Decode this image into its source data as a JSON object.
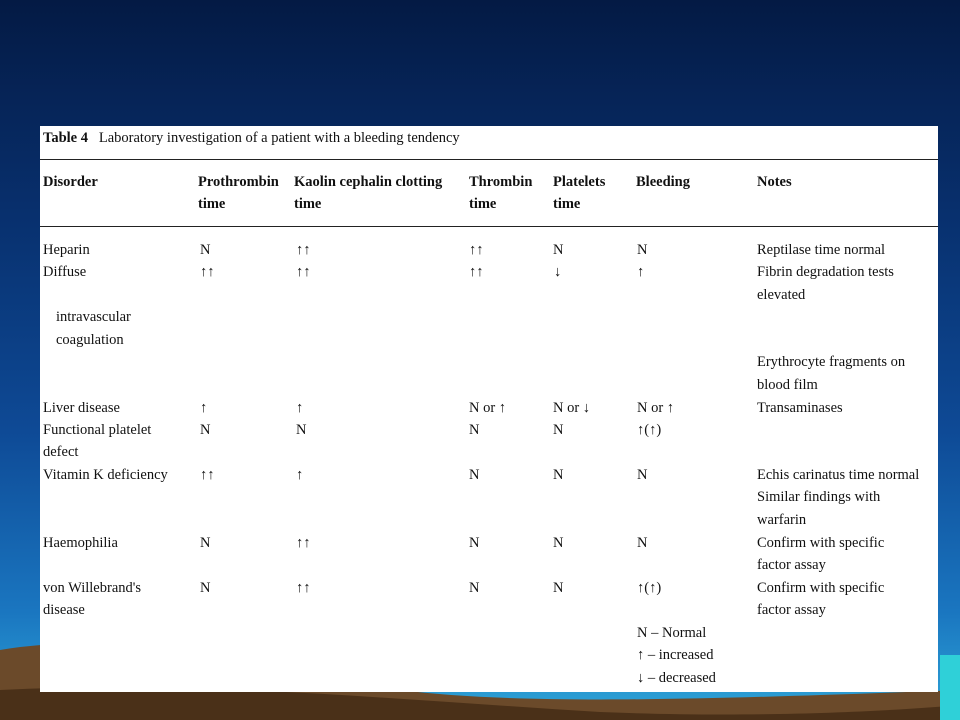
{
  "slide": {
    "colors": {
      "background_top": "#041a44",
      "background_bottom": "#2fa6d8",
      "hills": "#6b4a2a",
      "table_bg": "#ffffff"
    }
  },
  "table": {
    "caption_label": "Table 4",
    "caption_text": "Laboratory investigation of a patient with a bleeding tendency",
    "headers": {
      "disorder": "Disorder",
      "prothrombin": [
        "Prothrombin",
        "time"
      ],
      "kaolin": [
        "Kaolin cephalin clotting",
        "time"
      ],
      "thrombin": [
        "Thrombin",
        "time"
      ],
      "platelets": [
        "Platelets",
        "time"
      ],
      "bleeding": "Bleeding",
      "notes": "Notes"
    },
    "rows": {
      "heparin": {
        "disorder": "Heparin",
        "prothrombin": "N",
        "kaolin": "↑↑",
        "thrombin": "↑↑",
        "platelets": "N",
        "bleeding": "N",
        "notes": [
          "Reptilase time normal"
        ]
      },
      "dic": {
        "disorder": [
          "Diffuse",
          "intravascular",
          "coagulation"
        ],
        "prothrombin": "↑↑",
        "kaolin": "↑↑",
        "thrombin": "↑↑",
        "platelets": "↓",
        "bleeding": "↑",
        "notes": [
          "Fibrin degradation tests",
          "elevated",
          "Erythrocyte fragments on",
          "blood film"
        ]
      },
      "liver": {
        "disorder": "Liver disease",
        "prothrombin": "↑",
        "kaolin": "↑",
        "thrombin": "N or ↑",
        "platelets": "N or ↓",
        "bleeding": "N or ↑",
        "notes": [
          "Transaminases"
        ]
      },
      "platelet_defect": {
        "disorder": [
          "Functional platelet",
          "defect"
        ],
        "prothrombin": "N",
        "kaolin": "N",
        "thrombin": "N",
        "platelets": "N",
        "bleeding": "↑(↑)",
        "notes": []
      },
      "vitk": {
        "disorder": "Vitamin K deficiency",
        "prothrombin": "↑↑",
        "kaolin": "↑",
        "thrombin": "N",
        "platelets": "N",
        "bleeding": "N",
        "notes": [
          "Echis carinatus time normal",
          "Similar findings with",
          "warfarin"
        ]
      },
      "haemophilia": {
        "disorder": "Haemophilia",
        "prothrombin": "N",
        "kaolin": "↑↑",
        "thrombin": "N",
        "platelets": "N",
        "bleeding": "N",
        "notes": [
          "Confirm with specific",
          "factor assay"
        ]
      },
      "vwd": {
        "disorder": [
          "von Willebrand's",
          "disease"
        ],
        "prothrombin": "N",
        "kaolin": "↑↑",
        "thrombin": "N",
        "platelets": "N",
        "bleeding": "↑(↑)",
        "notes": [
          "Confirm with specific",
          "factor assay"
        ]
      }
    },
    "legend": [
      "N – Normal",
      "↑ – increased",
      "↓ – decreased"
    ]
  }
}
